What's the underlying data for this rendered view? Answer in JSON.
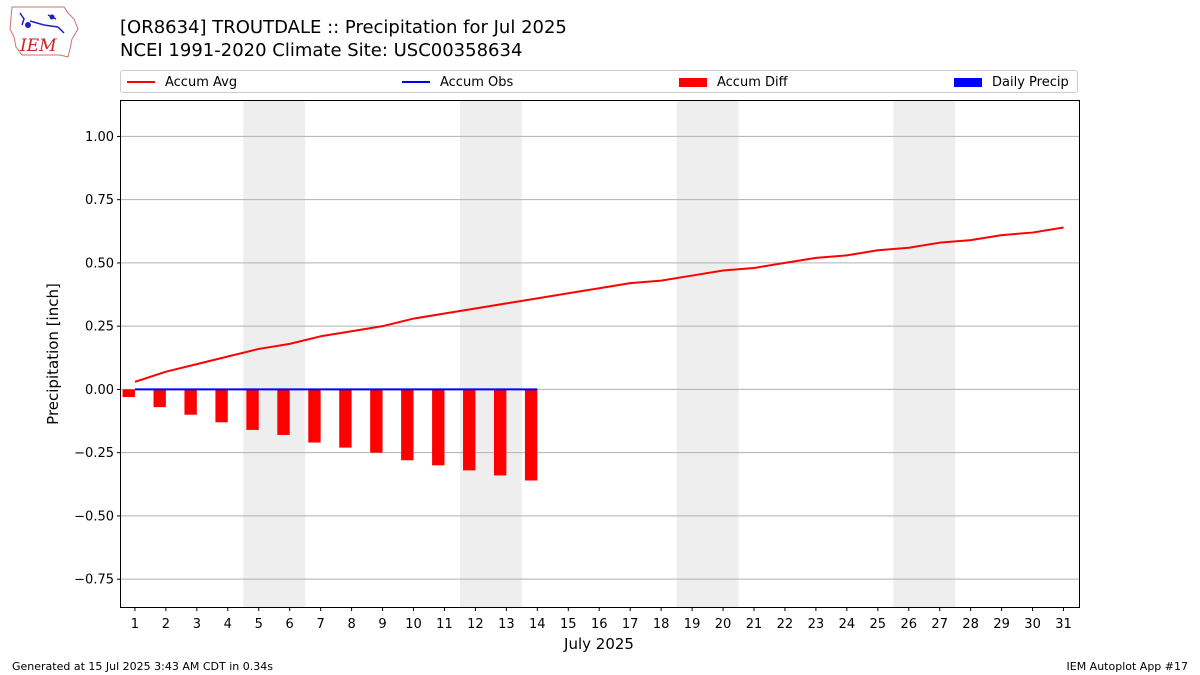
{
  "logo": {
    "text": "IEM",
    "icon": "iem-iowa-logo-icon"
  },
  "footer": {
    "generated": "Generated at 15 Jul 2025 3:43 AM CDT in 0.34s",
    "app": "IEM Autoplot App #17"
  },
  "colors": {
    "accum_avg": "#ff0000",
    "accum_obs": "#0000ff",
    "accum_diff": "#ff0000",
    "daily_precip": "#0000ff",
    "weekend_shade": "#eeeeee",
    "grid": "#b0b0b0"
  },
  "chart_data": {
    "type": "bar",
    "title": "[OR8634] TROUTDALE :: Precipitation for Jul 2025",
    "subtitle": "NCEI 1991-2020 Climate Site: USC00358634",
    "xlabel": "July 2025",
    "ylabel": "Precipitation [inch]",
    "ylim": [
      -0.86,
      1.14
    ],
    "xlim": [
      0.55,
      31.5
    ],
    "yticks": [
      -0.75,
      -0.5,
      -0.25,
      0.0,
      0.25,
      0.5,
      0.75,
      1.0
    ],
    "ytick_labels": [
      "−0.75",
      "−0.50",
      "−0.25",
      "0.00",
      "0.25",
      "0.50",
      "0.75",
      "1.00"
    ],
    "x": [
      1,
      2,
      3,
      4,
      5,
      6,
      7,
      8,
      9,
      10,
      11,
      12,
      13,
      14,
      15,
      16,
      17,
      18,
      19,
      20,
      21,
      22,
      23,
      24,
      25,
      26,
      27,
      28,
      29,
      30,
      31
    ],
    "grid": "horizontal",
    "legend_position": "top",
    "weekend_bands": [
      [
        4.5,
        6.5
      ],
      [
        11.5,
        13.5
      ],
      [
        18.5,
        20.5
      ],
      [
        25.5,
        27.5
      ]
    ],
    "series": [
      {
        "name": "Accum Avg",
        "type": "line",
        "x": [
          1,
          2,
          3,
          4,
          5,
          6,
          7,
          8,
          9,
          10,
          11,
          12,
          13,
          14,
          15,
          16,
          17,
          18,
          19,
          20,
          21,
          22,
          23,
          24,
          25,
          26,
          27,
          28,
          29,
          30,
          31
        ],
        "values": [
          0.03,
          0.07,
          0.1,
          0.13,
          0.16,
          0.18,
          0.21,
          0.23,
          0.25,
          0.28,
          0.3,
          0.32,
          0.34,
          0.36,
          0.38,
          0.4,
          0.42,
          0.43,
          0.45,
          0.47,
          0.48,
          0.5,
          0.52,
          0.53,
          0.55,
          0.56,
          0.58,
          0.59,
          0.61,
          0.62,
          0.64
        ]
      },
      {
        "name": "Accum Obs",
        "type": "line",
        "x": [
          1,
          2,
          3,
          4,
          5,
          6,
          7,
          8,
          9,
          10,
          11,
          12,
          13,
          14
        ],
        "values": [
          0,
          0,
          0,
          0,
          0,
          0,
          0,
          0,
          0,
          0,
          0,
          0,
          0,
          0
        ]
      },
      {
        "name": "Accum Diff",
        "type": "bar",
        "x": [
          1,
          2,
          3,
          4,
          5,
          6,
          7,
          8,
          9,
          10,
          11,
          12,
          13,
          14
        ],
        "values": [
          -0.03,
          -0.07,
          -0.1,
          -0.13,
          -0.16,
          -0.18,
          -0.21,
          -0.23,
          -0.25,
          -0.28,
          -0.3,
          -0.32,
          -0.34,
          -0.36
        ]
      },
      {
        "name": "Daily Precip",
        "type": "bar",
        "x": [
          1,
          2,
          3,
          4,
          5,
          6,
          7,
          8,
          9,
          10,
          11,
          12,
          13,
          14
        ],
        "values": [
          0,
          0,
          0,
          0,
          0,
          0,
          0,
          0,
          0,
          0,
          0,
          0,
          0,
          0
        ]
      }
    ]
  }
}
